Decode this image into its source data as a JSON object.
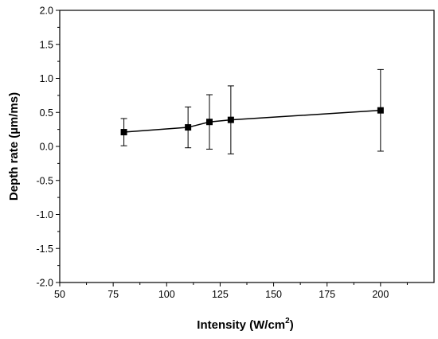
{
  "chart_data": {
    "type": "line",
    "title": "",
    "xlabel": "Intensity (W/cm",
    "xlabel_sup": "2",
    "xlabel_suffix": ")",
    "ylabel": "Depth rate (µm/ms)",
    "xlim": [
      50,
      225
    ],
    "ylim": [
      -2.0,
      2.0
    ],
    "x_ticks": [
      50,
      75,
      100,
      125,
      150,
      175,
      200
    ],
    "x_tick_labels": [
      "50",
      "75",
      "100",
      "125",
      "150",
      "175",
      "200"
    ],
    "y_ticks": [
      -2.0,
      -1.5,
      -1.0,
      -0.5,
      0.0,
      0.5,
      1.0,
      1.5,
      2.0
    ],
    "y_tick_labels": [
      "-2.0",
      "-1.5",
      "-1.0",
      "-0.5",
      "0.0",
      "0.5",
      "1.0",
      "1.5",
      "2.0"
    ],
    "grid": false,
    "legend": false,
    "marker": "square",
    "color": "#000000",
    "series": [
      {
        "x": [
          80,
          110,
          120,
          130,
          200
        ],
        "y": [
          0.21,
          0.28,
          0.36,
          0.39,
          0.53
        ],
        "error": [
          0.2,
          0.3,
          0.4,
          0.5,
          0.6
        ]
      }
    ]
  }
}
